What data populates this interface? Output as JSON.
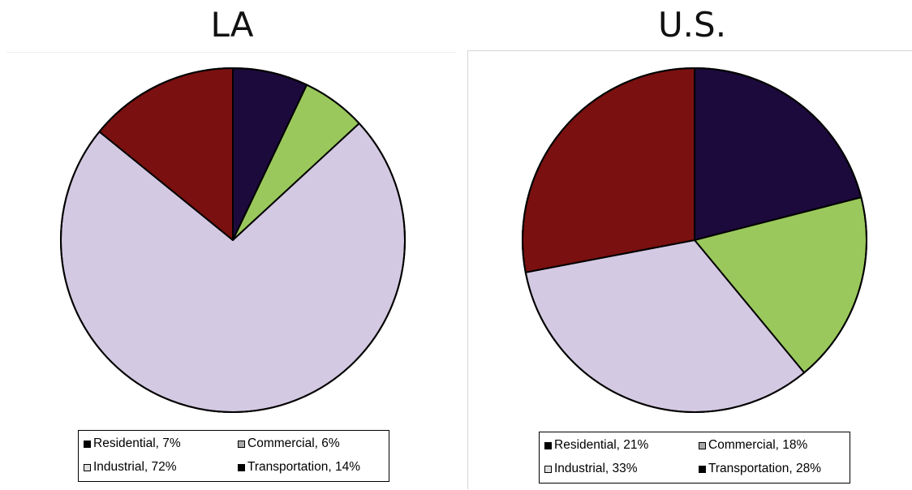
{
  "chart_data": [
    {
      "type": "pie",
      "title": "LA",
      "slices": [
        {
          "label": "Residential",
          "value": 7,
          "display": "Residential, 7%",
          "color": "#1c0a3c"
        },
        {
          "label": "Commercial",
          "value": 6,
          "display": "Commercial, 6%",
          "color": "#9ac85c"
        },
        {
          "label": "Industrial",
          "value": 72,
          "display": "Industrial, 72%",
          "color": "#d4c9e2"
        },
        {
          "label": "Transportation",
          "value": 14,
          "display": "Transportation, 14%",
          "color": "#7a1010"
        }
      ],
      "start_angle": "12 o'clock",
      "direction": "clockwise",
      "legend_position": "bottom"
    },
    {
      "type": "pie",
      "title": "U.S.",
      "slices": [
        {
          "label": "Residential",
          "value": 21,
          "display": "Residential, 21%",
          "color": "#1c0a3c"
        },
        {
          "label": "Commercial",
          "value": 18,
          "display": "Commercial, 18%",
          "color": "#9ac85c"
        },
        {
          "label": "Industrial",
          "value": 33,
          "display": "Industrial, 33%",
          "color": "#d4c9e2"
        },
        {
          "label": "Transportation",
          "value": 28,
          "display": "Transportation, 28%",
          "color": "#7a1010"
        }
      ],
      "start_angle": "12 o'clock",
      "direction": "clockwise",
      "legend_position": "bottom"
    }
  ],
  "legend_swatch_colors": {
    "Residential": "#000000",
    "Commercial": "#a8a8a8",
    "Industrial": "#e0e0e0",
    "Transportation": "#000000"
  }
}
